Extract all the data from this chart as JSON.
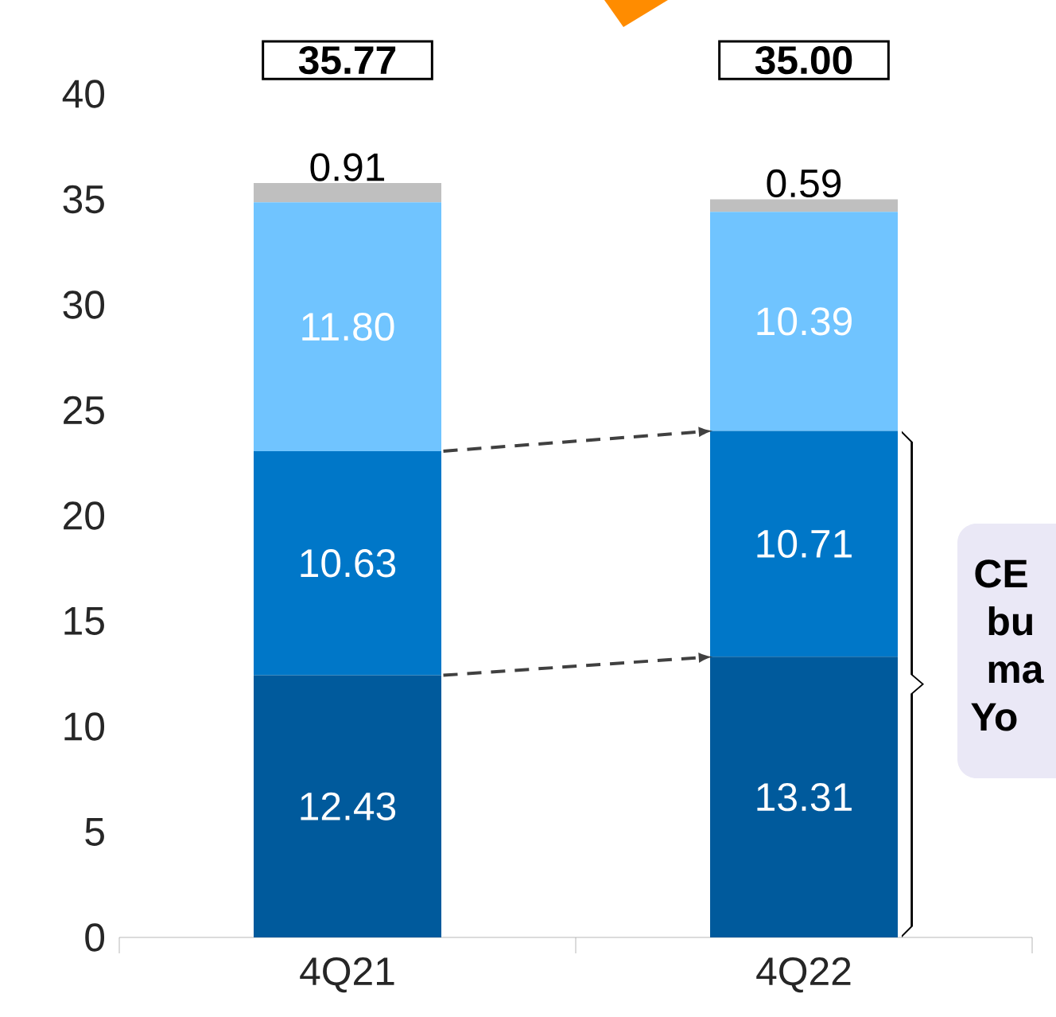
{
  "chart_data": {
    "type": "bar",
    "stacked": true,
    "categories": [
      "4Q21",
      "4Q22"
    ],
    "series": [
      {
        "color": "#005a9c",
        "values": [
          12.43,
          13.31
        ],
        "value_labels": [
          "12.43",
          "13.31"
        ]
      },
      {
        "color": "#0077c8",
        "values": [
          10.63,
          10.71
        ],
        "value_labels": [
          "10.63",
          "10.71"
        ]
      },
      {
        "color": "#70c4ff",
        "values": [
          11.8,
          10.39
        ],
        "value_labels": [
          "11.80",
          "10.39"
        ]
      },
      {
        "color": "#bfbfbf",
        "values": [
          0.91,
          0.59
        ],
        "value_labels": [
          "0.91",
          "0.59"
        ]
      }
    ],
    "ylim": [
      0,
      40
    ],
    "yticks": [
      0,
      5,
      10,
      15,
      20,
      25,
      30,
      35,
      40
    ],
    "totals": [
      "35.77",
      "35.00"
    ],
    "grid": false,
    "annotations": [
      "CE",
      "bu",
      "ma",
      "Yo"
    ]
  }
}
